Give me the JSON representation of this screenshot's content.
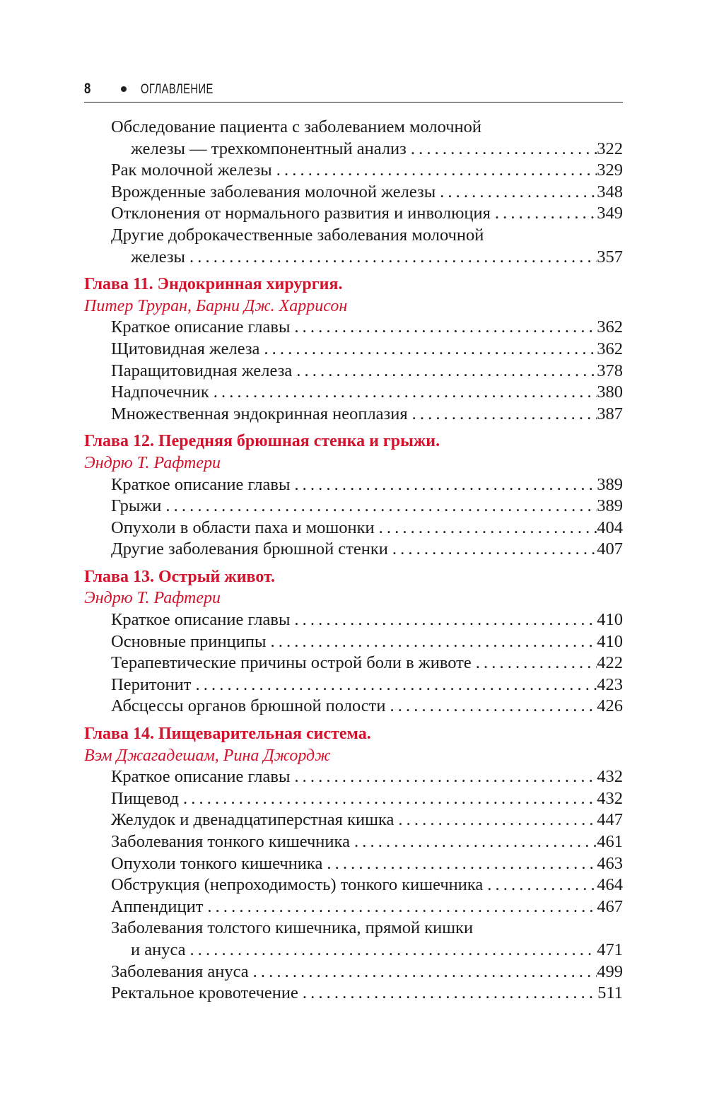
{
  "header": {
    "page_number": "8",
    "title": "ОГЛАВЛЕНИЕ"
  },
  "sections": [
    {
      "chapter": null,
      "author": null,
      "entries": [
        {
          "lines": [
            "Обследование пациента с заболеванием молочной",
            "железы — трехкомпонентный анализ"
          ],
          "page": "322"
        },
        {
          "lines": [
            "Рак молочной железы"
          ],
          "page": "329"
        },
        {
          "lines": [
            "Врожденные заболевания молочной железы"
          ],
          "page": "348"
        },
        {
          "lines": [
            "Отклонения от нормального развития и инволюция"
          ],
          "page": "349"
        },
        {
          "lines": [
            "Другие доброкачественные заболевания молочной",
            "железы"
          ],
          "page": "357"
        }
      ]
    },
    {
      "chapter": "Глава 11. Эндокринная хирургия.",
      "author": "Питер Труран, Барни Дж. Харрисон",
      "entries": [
        {
          "lines": [
            "Краткое описание главы"
          ],
          "page": "362"
        },
        {
          "lines": [
            "Щитовидная железа"
          ],
          "page": "362"
        },
        {
          "lines": [
            "Паращитовидная железа"
          ],
          "page": "378"
        },
        {
          "lines": [
            "Надпочечник"
          ],
          "page": "380"
        },
        {
          "lines": [
            "Множественная эндокринная неоплазия"
          ],
          "page": "387"
        }
      ]
    },
    {
      "chapter": "Глава 12. Передняя брюшная стенка и грыжи.",
      "author": "Эндрю Т. Рафтери",
      "entries": [
        {
          "lines": [
            "Краткое описание главы"
          ],
          "page": "389"
        },
        {
          "lines": [
            "Грыжи"
          ],
          "page": "389"
        },
        {
          "lines": [
            "Опухоли в области паха и мошонки"
          ],
          "page": "404"
        },
        {
          "lines": [
            "Другие заболевания брюшной стенки"
          ],
          "page": "407"
        }
      ]
    },
    {
      "chapter": "Глава 13. Острый живот.",
      "author": "Эндрю Т. Рафтери",
      "entries": [
        {
          "lines": [
            "Краткое описание главы"
          ],
          "page": "410"
        },
        {
          "lines": [
            "Основные принципы"
          ],
          "page": "410"
        },
        {
          "lines": [
            "Терапевтические причины острой боли в животе"
          ],
          "page": "422"
        },
        {
          "lines": [
            "Перитонит"
          ],
          "page": "423"
        },
        {
          "lines": [
            "Абсцессы органов брюшной полости"
          ],
          "page": "426"
        }
      ]
    },
    {
      "chapter": "Глава 14. Пищеварительная система.",
      "author": "Вэм Джагадешам, Рина Джордж",
      "entries": [
        {
          "lines": [
            "Краткое описание главы"
          ],
          "page": "432"
        },
        {
          "lines": [
            "Пищевод"
          ],
          "page": "432"
        },
        {
          "lines": [
            "Желудок и двенадцатиперстная кишка"
          ],
          "page": "447"
        },
        {
          "lines": [
            "Заболевания тонкого кишечника"
          ],
          "page": "461"
        },
        {
          "lines": [
            "Опухоли тонкого кишечника"
          ],
          "page": "463"
        },
        {
          "lines": [
            "Обструкция (непроходимость) тонкого кишечника"
          ],
          "page": "464"
        },
        {
          "lines": [
            "Аппендицит"
          ],
          "page": "467"
        },
        {
          "lines": [
            "Заболевания толстого кишечника, прямой кишки",
            "и ануса"
          ],
          "page": "471"
        },
        {
          "lines": [
            "Заболевания ануса"
          ],
          "page": "499"
        },
        {
          "lines": [
            "Ректальное кровотечение"
          ],
          "page": "511"
        }
      ]
    }
  ],
  "colors": {
    "chapter": "#d3122c",
    "text": "#1a1a1a"
  }
}
